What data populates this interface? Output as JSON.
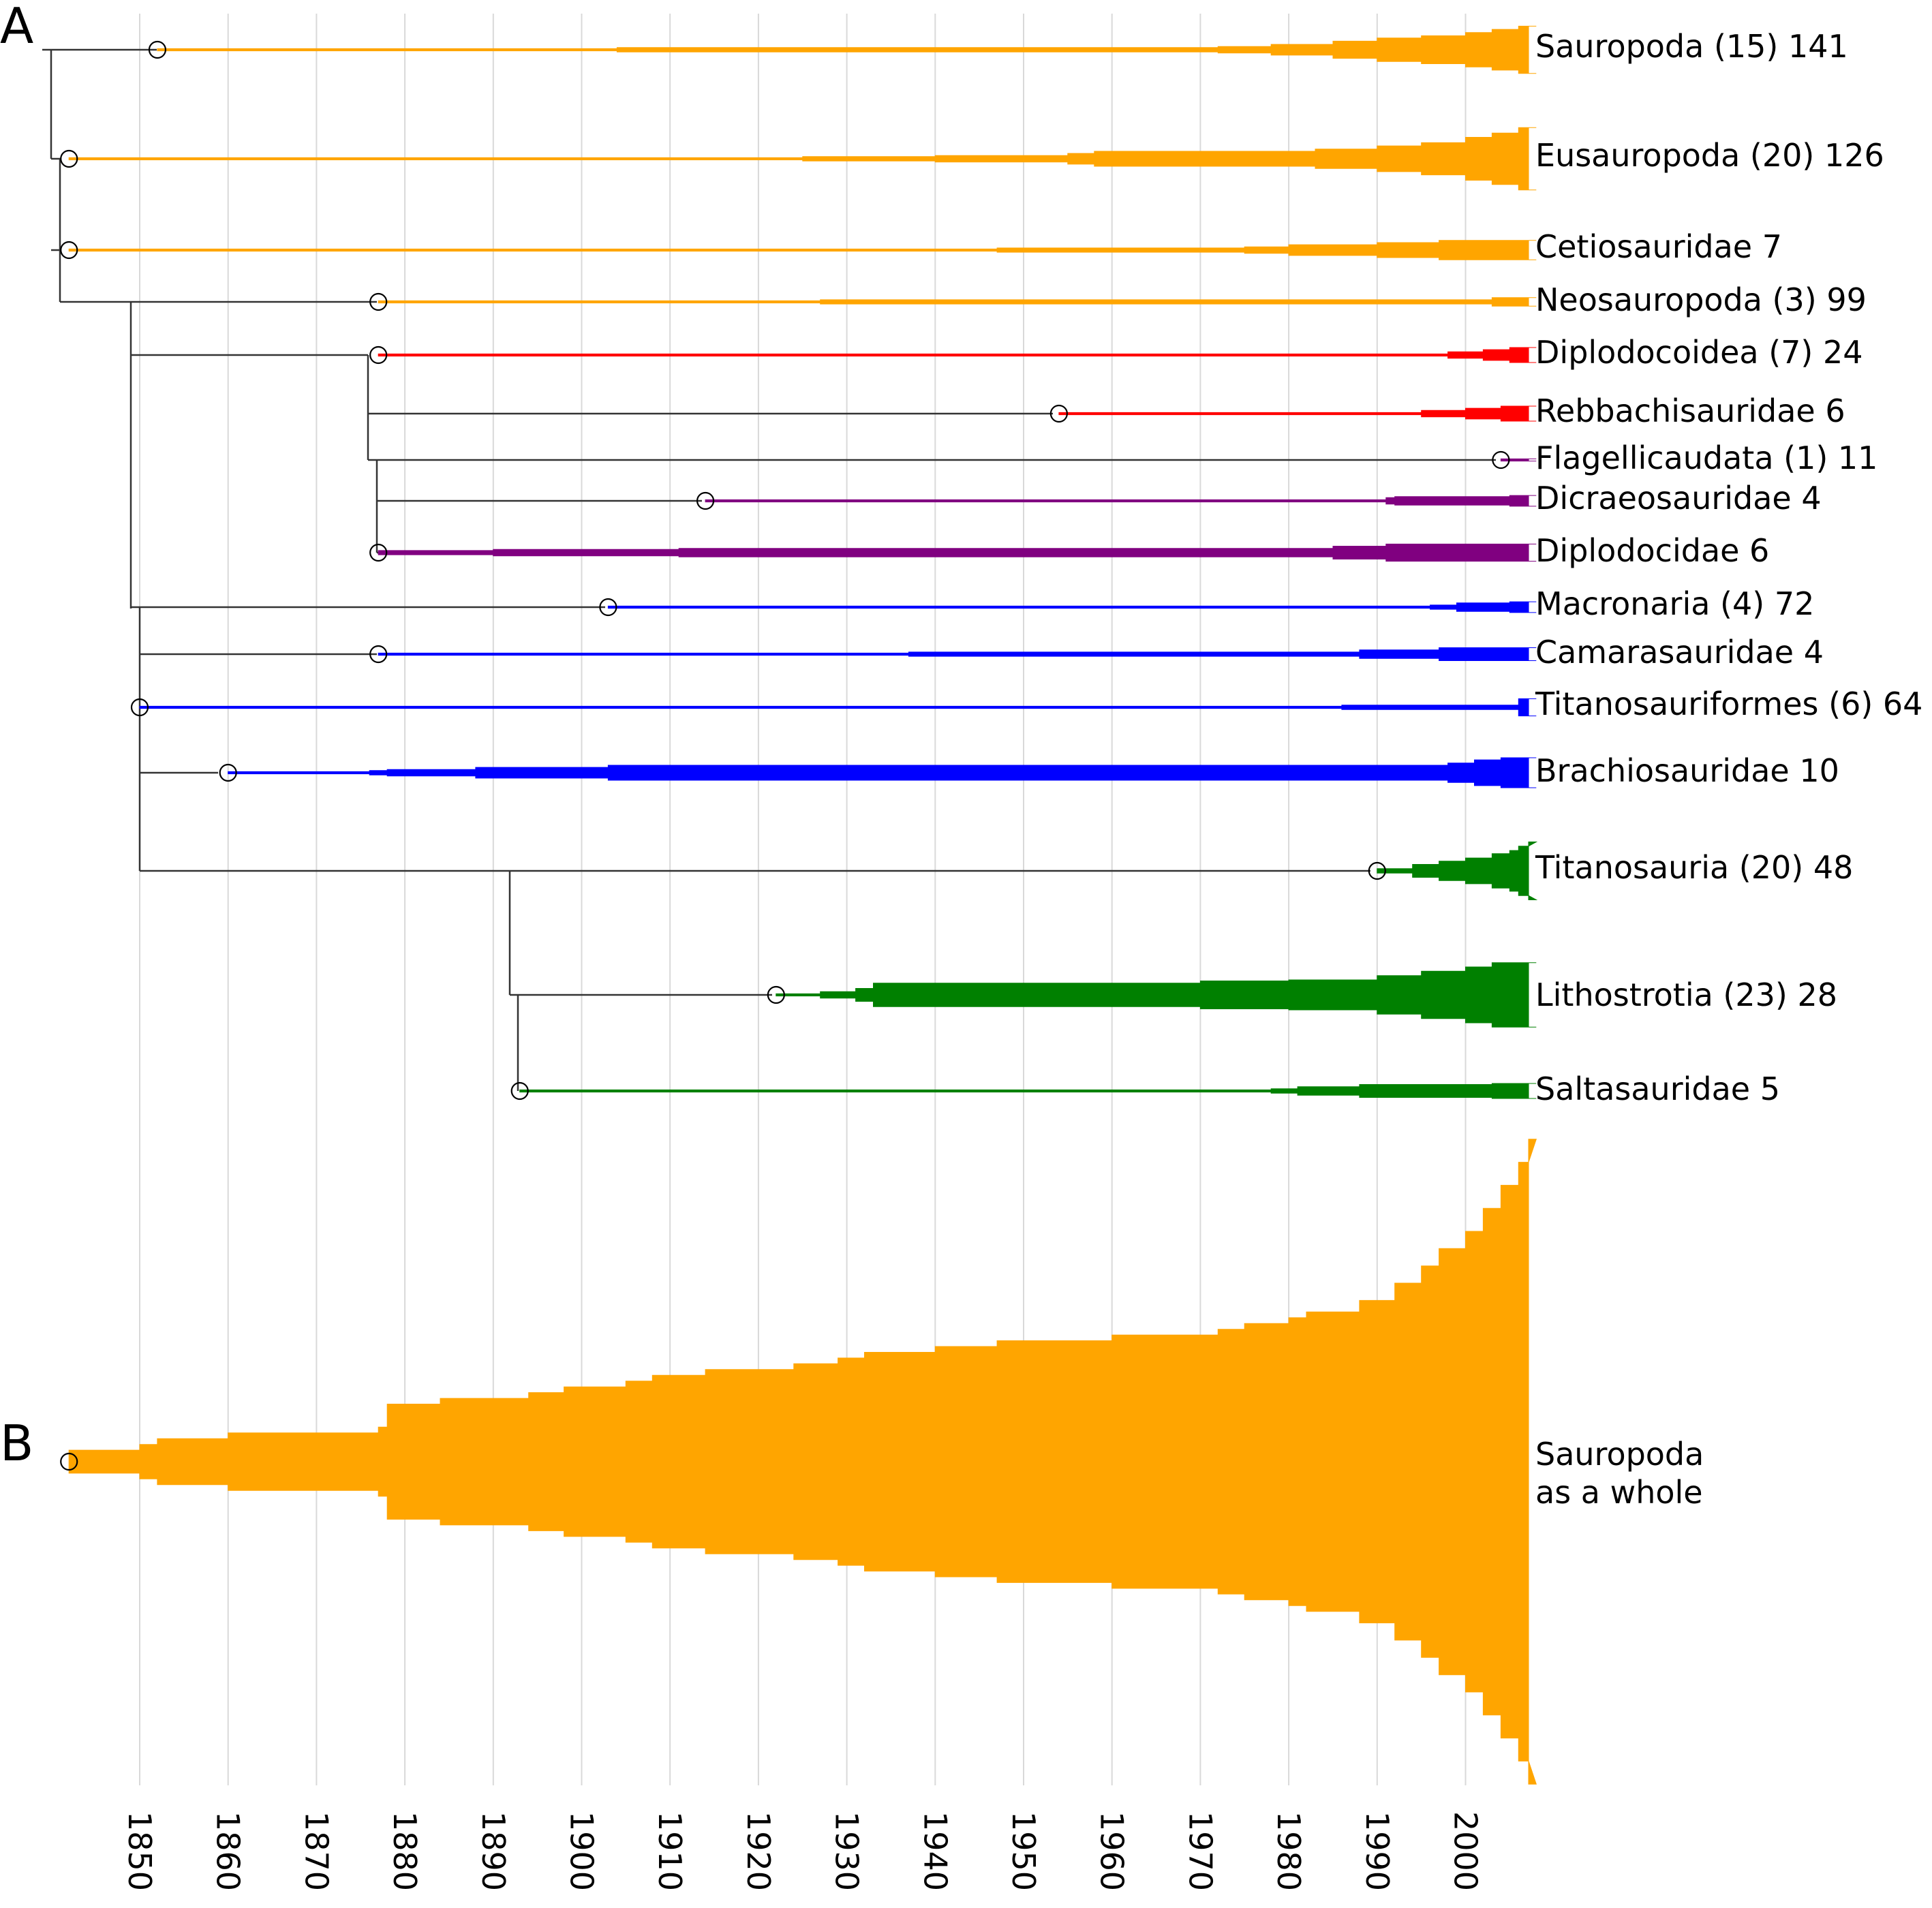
{
  "panels": {
    "a": "A",
    "b": "B"
  },
  "colors": {
    "orange": "#ffa500",
    "red": "#ff0000",
    "purple": "#800080",
    "blue": "#0000ff",
    "green": "#008000",
    "tree": "#333333",
    "grid": "#d9d9d9"
  },
  "chart_data": [
    {
      "panel": "A",
      "type": "area",
      "description": "Cladogram with per-clade spindle widths over year of naming",
      "x_axis": {
        "ticks": [
          1850,
          1860,
          1870,
          1880,
          1890,
          1900,
          1910,
          1920,
          1930,
          1940,
          1950,
          1960,
          1970,
          1980,
          1990,
          2000
        ],
        "range": [
          1841,
          2008
        ],
        "vertical_grid": true
      },
      "clades": [
        {
          "label": "Sauropoda (15) 141",
          "color": "orange",
          "origin": 1852,
          "width_profile": [
            [
              1852,
              1
            ],
            [
              1904,
              2
            ],
            [
              1972,
              3
            ],
            [
              1978,
              5
            ],
            [
              1985,
              8
            ],
            [
              1990,
              11
            ],
            [
              1995,
              13
            ],
            [
              2000,
              16
            ],
            [
              2003,
              19
            ],
            [
              2006,
              22
            ],
            [
              2008,
              22
            ]
          ]
        },
        {
          "label": "Eusauropoda (20) 126",
          "color": "orange",
          "origin": 1842,
          "width_profile": [
            [
              1842,
              1
            ],
            [
              1925,
              2
            ],
            [
              1940,
              3
            ],
            [
              1955,
              5
            ],
            [
              1958,
              7
            ],
            [
              1983,
              9
            ],
            [
              1990,
              12
            ],
            [
              1995,
              15
            ],
            [
              2000,
              20
            ],
            [
              2003,
              24
            ],
            [
              2006,
              29
            ],
            [
              2008,
              29
            ]
          ]
        },
        {
          "label": "Cetiosauridae 7",
          "color": "orange",
          "origin": 1842,
          "width_profile": [
            [
              1842,
              1
            ],
            [
              1947,
              2
            ],
            [
              1975,
              3
            ],
            [
              1980,
              5
            ],
            [
              1990,
              7
            ],
            [
              1997,
              9
            ],
            [
              2008,
              9
            ]
          ]
        },
        {
          "label": "Neosauropoda (3) 99",
          "color": "orange",
          "origin": 1877,
          "width_profile": [
            [
              1877,
              1
            ],
            [
              1927,
              2
            ],
            [
              2003,
              4
            ],
            [
              2008,
              4
            ]
          ]
        },
        {
          "label": "Diplodocoidea (7) 24",
          "color": "red",
          "origin": 1877,
          "width_profile": [
            [
              1877,
              1
            ],
            [
              1998,
              3
            ],
            [
              2002,
              5
            ],
            [
              2005,
              7
            ],
            [
              2008,
              7
            ]
          ]
        },
        {
          "label": "Rebbachisauridae 6",
          "color": "red",
          "origin": 1954,
          "width_profile": [
            [
              1954,
              1
            ],
            [
              1995,
              3
            ],
            [
              2000,
              5
            ],
            [
              2004,
              7
            ],
            [
              2008,
              7
            ]
          ]
        },
        {
          "label": "Flagellicaudata (1) 11",
          "color": "purple",
          "origin": 2004,
          "width_profile": [
            [
              2004,
              1
            ],
            [
              2008,
              1
            ]
          ]
        },
        {
          "label": "Dicraeosauridae 4",
          "color": "purple",
          "origin": 1914,
          "width_profile": [
            [
              1914,
              1
            ],
            [
              1991,
              3
            ],
            [
              1992,
              4
            ],
            [
              2005,
              5
            ],
            [
              2008,
              5
            ]
          ]
        },
        {
          "label": "Diplodocidae 6",
          "color": "purple",
          "origin": 1877,
          "width_profile": [
            [
              1877,
              2
            ],
            [
              1890,
              3
            ],
            [
              1911,
              4
            ],
            [
              1985,
              6
            ],
            [
              1991,
              8
            ],
            [
              2008,
              8
            ]
          ]
        },
        {
          "label": "Macronaria (4) 72",
          "color": "blue",
          "origin": 1903,
          "width_profile": [
            [
              1903,
              1
            ],
            [
              1996,
              2
            ],
            [
              1999,
              4
            ],
            [
              2005,
              5
            ],
            [
              2008,
              5
            ]
          ]
        },
        {
          "label": "Camarasauridae 4",
          "color": "blue",
          "origin": 1877,
          "width_profile": [
            [
              1877,
              1
            ],
            [
              1937,
              2
            ],
            [
              1988,
              4
            ],
            [
              1997,
              6
            ],
            [
              2008,
              6
            ]
          ]
        },
        {
          "label": "Titanosauriformes (6) 64",
          "color": "blue",
          "origin": 1850,
          "width_profile": [
            [
              1850,
              1
            ],
            [
              1986,
              2
            ],
            [
              2006,
              8
            ],
            [
              2008,
              8
            ]
          ]
        },
        {
          "label": "Brachiosauridae 10",
          "color": "blue",
          "origin": 1860,
          "width_profile": [
            [
              1860,
              1
            ],
            [
              1876,
              2
            ],
            [
              1878,
              3
            ],
            [
              1888,
              5
            ],
            [
              1903,
              7
            ],
            [
              1998,
              9
            ],
            [
              2001,
              12
            ],
            [
              2004,
              14
            ],
            [
              2008,
              14
            ]
          ]
        },
        {
          "label": "Titanosauria (20) 48",
          "color": "green",
          "origin": 1990,
          "width_profile": [
            [
              1990,
              2
            ],
            [
              1994,
              6
            ],
            [
              1997,
              9
            ],
            [
              2000,
              12
            ],
            [
              2003,
              16
            ],
            [
              2005,
              19
            ],
            [
              2006,
              23
            ],
            [
              2008,
              27
            ]
          ]
        },
        {
          "label": "Lithostrotia (23) 28",
          "color": "green",
          "origin": 1922,
          "width_profile": [
            [
              1922,
              1
            ],
            [
              1927,
              3
            ],
            [
              1931,
              6
            ],
            [
              1933,
              11
            ],
            [
              1970,
              13
            ],
            [
              1980,
              14
            ],
            [
              1990,
              18
            ],
            [
              1995,
              22
            ],
            [
              2000,
              26
            ],
            [
              2003,
              30
            ],
            [
              2008,
              30
            ]
          ]
        },
        {
          "label": "Saltasauridae 5",
          "color": "green",
          "origin": 1893,
          "width_profile": [
            [
              1893,
              1
            ],
            [
              1978,
              2
            ],
            [
              1981,
              4
            ],
            [
              1988,
              6
            ],
            [
              2003,
              7
            ],
            [
              2008,
              7
            ]
          ]
        }
      ]
    },
    {
      "panel": "B",
      "type": "area",
      "label_lines": [
        "Sauropoda",
        "as a whole"
      ],
      "color": "orange",
      "origin": 1842,
      "x_axis": {
        "ticks": [
          1850,
          1860,
          1870,
          1880,
          1890,
          1900,
          1910,
          1920,
          1930,
          1940,
          1950,
          1960,
          1970,
          1980,
          1990,
          2000
        ],
        "range": [
          1841,
          2008
        ]
      },
      "width_profile": [
        [
          1842,
          4
        ],
        [
          1850,
          6
        ],
        [
          1852,
          8
        ],
        [
          1860,
          10
        ],
        [
          1877,
          12
        ],
        [
          1878,
          20
        ],
        [
          1884,
          22
        ],
        [
          1894,
          24
        ],
        [
          1898,
          26
        ],
        [
          1905,
          28
        ],
        [
          1908,
          30
        ],
        [
          1914,
          32
        ],
        [
          1924,
          34
        ],
        [
          1929,
          36
        ],
        [
          1932,
          38
        ],
        [
          1940,
          40
        ],
        [
          1947,
          42
        ],
        [
          1960,
          44
        ],
        [
          1972,
          46
        ],
        [
          1975,
          48
        ],
        [
          1980,
          50
        ],
        [
          1982,
          52
        ],
        [
          1988,
          56
        ],
        [
          1992,
          62
        ],
        [
          1995,
          68
        ],
        [
          1997,
          74
        ],
        [
          2000,
          80
        ],
        [
          2002,
          88
        ],
        [
          2004,
          96
        ],
        [
          2006,
          104
        ],
        [
          2008,
          112
        ]
      ]
    }
  ]
}
